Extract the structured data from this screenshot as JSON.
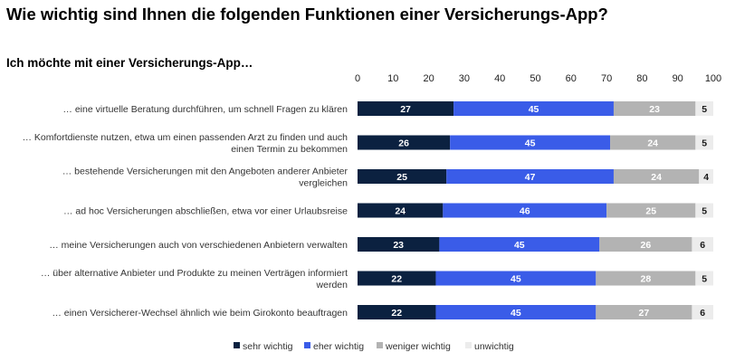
{
  "title": "Wie wichtig sind Ihnen die folgenden Funktionen einer Versicherungs-App?",
  "subtitle": "Ich möchte mit einer Versicherungs-App…",
  "colors": {
    "sehr_wichtig": "#0b2140",
    "eher_wichtig": "#3a5ce8",
    "weniger_wichtig": "#b3b3b3",
    "unwichtig": "#ececec"
  },
  "chart_data": {
    "type": "bar",
    "orientation": "horizontal",
    "stacked": true,
    "xlim": [
      0,
      100
    ],
    "xticks": [
      0,
      10,
      20,
      30,
      40,
      50,
      60,
      70,
      80,
      90,
      100
    ],
    "categories": [
      [
        "… eine virtuelle Beratung durchführen, um schnell Fragen zu klären"
      ],
      [
        "… Komfortdienste nutzen, etwa um einen passenden Arzt zu finden und auch",
        "einen Termin zu bekommen"
      ],
      [
        "… bestehende Versicherungen mit den Angeboten anderer Anbieter",
        "vergleichen"
      ],
      [
        "… ad hoc Versicherungen abschließen, etwa vor einer Urlaubsreise"
      ],
      [
        "… meine Versicherungen auch von verschiedenen Anbietern verwalten"
      ],
      [
        "… über alternative Anbieter und Produkte zu meinen Verträgen informiert",
        "werden"
      ],
      [
        "… einen Versicherer-Wechsel ähnlich wie beim Girokonto beauftragen"
      ]
    ],
    "series": [
      {
        "name": "sehr wichtig",
        "color": "#0b2140",
        "label_color": "#ffffff",
        "values": [
          27,
          26,
          25,
          24,
          23,
          22,
          22
        ]
      },
      {
        "name": "eher wichtig",
        "color": "#3a5ce8",
        "label_color": "#ffffff",
        "values": [
          45,
          45,
          47,
          46,
          45,
          45,
          45
        ]
      },
      {
        "name": "weniger wichtig",
        "color": "#b3b3b3",
        "label_color": "#ffffff",
        "values": [
          23,
          24,
          24,
          25,
          26,
          28,
          27
        ]
      },
      {
        "name": "unwichtig",
        "color": "#ececec",
        "label_color": "#1a1a1a",
        "values": [
          5,
          5,
          4,
          5,
          6,
          5,
          6
        ]
      }
    ],
    "legend_position": "bottom"
  }
}
